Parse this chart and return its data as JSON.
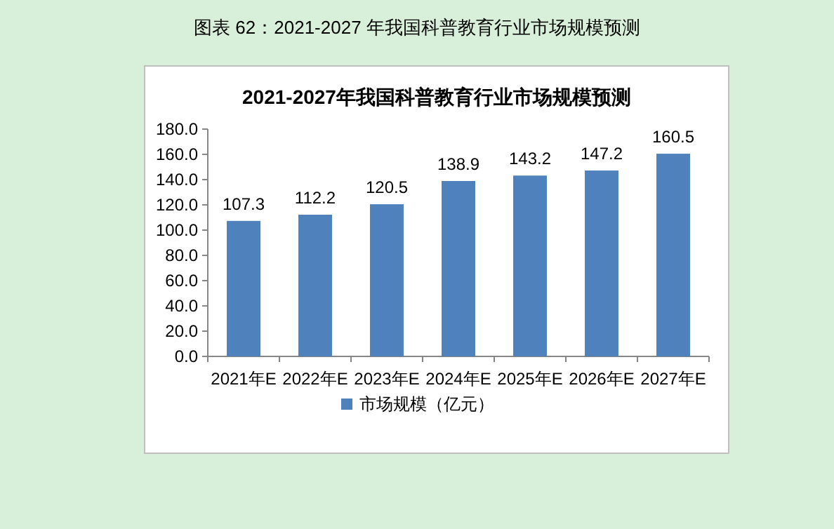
{
  "chart_data": {
    "type": "bar",
    "title": "2021-2027年我国科普教育行业市场规模预测",
    "annotations": [
      "图表 62：2021-2027 年我国科普教育行业市场规模预测"
    ],
    "categories": [
      "2021年E",
      "2022年E",
      "2023年E",
      "2024年E",
      "2025年E",
      "2026年E",
      "2027年E"
    ],
    "series": [
      {
        "name": "市场规模（亿元）",
        "color": "#4f81bd",
        "values": [
          107.3,
          112.2,
          120.5,
          138.9,
          143.2,
          147.2,
          160.5
        ]
      }
    ],
    "ylim": [
      0,
      180
    ],
    "yticks": [
      {
        "value": 0,
        "label": "0.0"
      },
      {
        "value": 20,
        "label": "20.0"
      },
      {
        "value": 40,
        "label": "40.0"
      },
      {
        "value": 60,
        "label": "60.0"
      },
      {
        "value": 80,
        "label": "80.0"
      },
      {
        "value": 100,
        "label": "100.0"
      },
      {
        "value": 120,
        "label": "120.0"
      },
      {
        "value": 140,
        "label": "140.0"
      },
      {
        "value": 160,
        "label": "160.0"
      },
      {
        "value": 180,
        "label": "180.0"
      }
    ],
    "grid": false,
    "legend": "bottom",
    "data_labels": true
  }
}
